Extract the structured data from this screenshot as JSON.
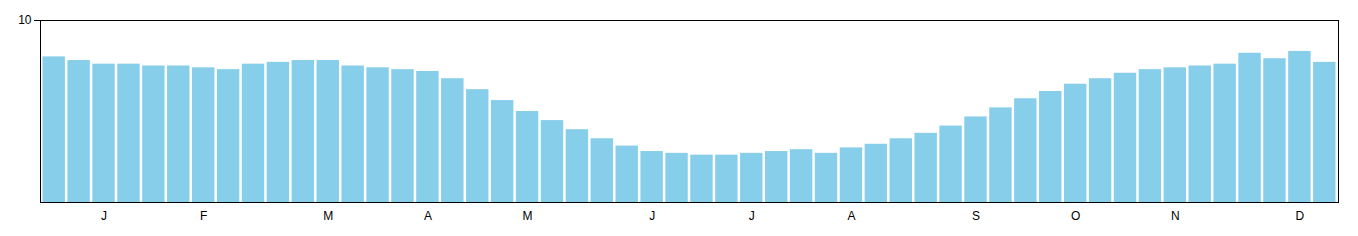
{
  "chart_data": {
    "type": "bar",
    "categories": [
      null,
      null,
      "J",
      null,
      null,
      null,
      "F",
      null,
      null,
      null,
      null,
      "M",
      null,
      null,
      null,
      "A",
      null,
      null,
      null,
      "M",
      null,
      null,
      null,
      null,
      "J",
      null,
      null,
      null,
      "J",
      null,
      null,
      null,
      "A",
      null,
      null,
      null,
      null,
      "S",
      null,
      null,
      null,
      "O",
      null,
      null,
      null,
      "N",
      null,
      null,
      null,
      null,
      "D",
      null
    ],
    "values": [
      8.0,
      7.8,
      7.6,
      7.6,
      7.5,
      7.5,
      7.4,
      7.3,
      7.6,
      7.7,
      7.8,
      7.8,
      7.5,
      7.4,
      7.3,
      7.2,
      6.8,
      6.2,
      5.6,
      5.0,
      4.5,
      4.0,
      3.5,
      3.1,
      2.8,
      2.7,
      2.6,
      2.6,
      2.7,
      2.8,
      2.9,
      2.7,
      3.0,
      3.2,
      3.5,
      3.8,
      4.2,
      4.7,
      5.2,
      5.7,
      6.1,
      6.5,
      6.8,
      7.1,
      7.3,
      7.4,
      7.5,
      7.6,
      8.2,
      7.9,
      8.3,
      7.7
    ],
    "color": "#87CEEB",
    "ylim": [
      0,
      10
    ],
    "yticks": [
      10
    ],
    "grid": false
  }
}
